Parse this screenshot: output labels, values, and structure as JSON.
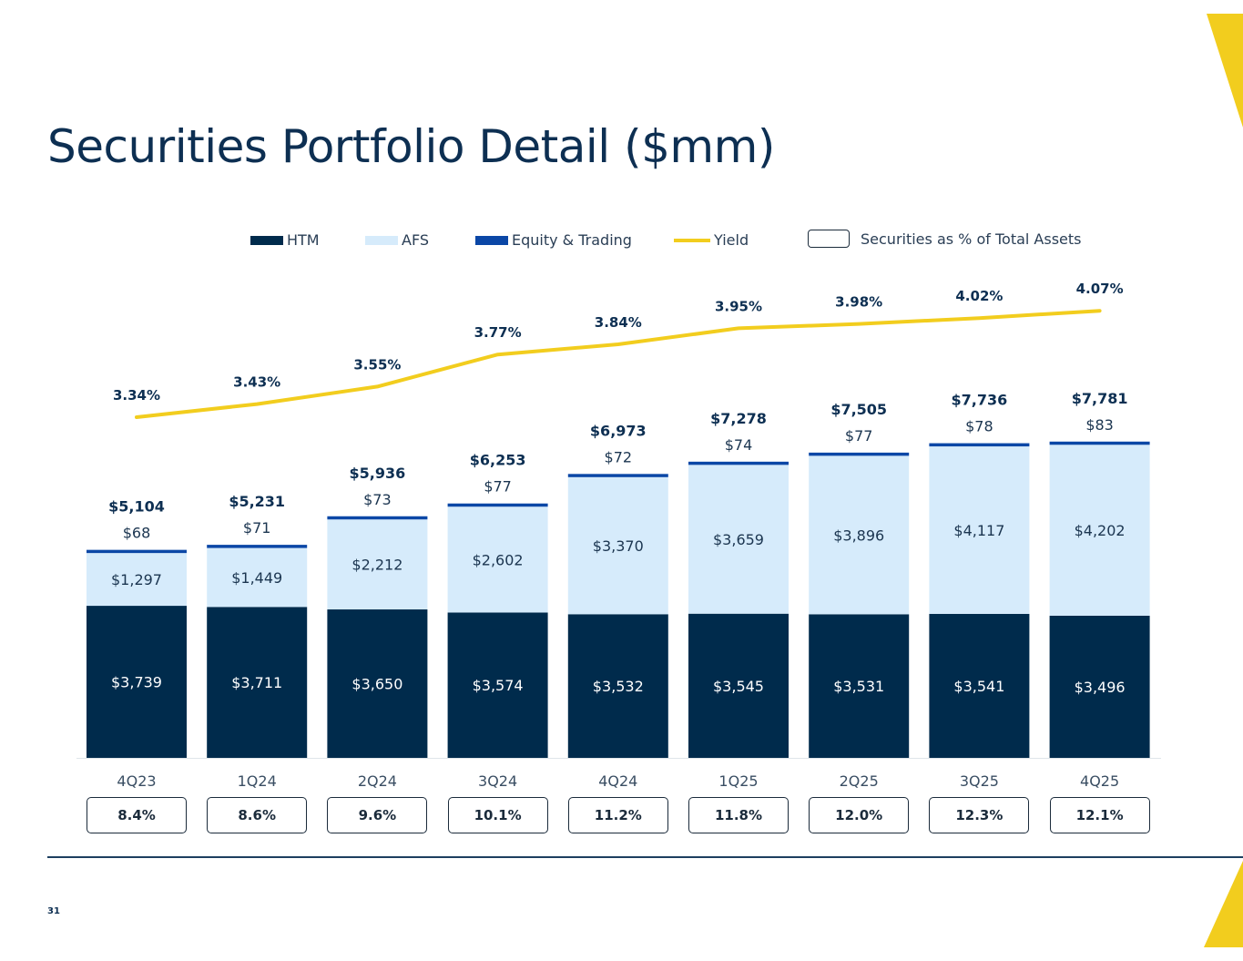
{
  "page": {
    "title": "Securities Portfolio Detail ($mm)",
    "page_number": "31"
  },
  "legend": {
    "htm": "HTM",
    "afs": "AFS",
    "equity": "Equity & Trading",
    "yield": "Yield",
    "pct_assets": "Securities as % of Total Assets"
  },
  "colors": {
    "htm": "#002b4c",
    "afs": "#d6ebfb",
    "equity": "#0b47a6",
    "yield": "#f2cd1e",
    "accent": "#f2cd1e"
  },
  "chart_data": {
    "type": "bar",
    "stacked": true,
    "categories": [
      "4Q23",
      "1Q24",
      "2Q24",
      "3Q24",
      "4Q24",
      "1Q25",
      "2Q25",
      "3Q25",
      "4Q25"
    ],
    "series": [
      {
        "name": "HTM",
        "values": [
          3739,
          3711,
          3650,
          3574,
          3532,
          3545,
          3531,
          3541,
          3496
        ],
        "labels": [
          "$3,739",
          "$3,711",
          "$3,650",
          "$3,574",
          "$3,532",
          "$3,545",
          "$3,531",
          "$3,541",
          "$3,496"
        ]
      },
      {
        "name": "AFS",
        "values": [
          1297,
          1449,
          2212,
          2602,
          3370,
          3659,
          3896,
          4117,
          4202
        ],
        "labels": [
          "$1,297",
          "$1,449",
          "$2,212",
          "$2,602",
          "$3,370",
          "$3,659",
          "$3,896",
          "$4,117",
          "$4,202"
        ]
      },
      {
        "name": "Equity & Trading",
        "values": [
          68,
          71,
          73,
          77,
          72,
          74,
          77,
          78,
          83
        ],
        "labels": [
          "$68",
          "$71",
          "$73",
          "$77",
          "$72",
          "$74",
          "$77",
          "$78",
          "$83"
        ]
      }
    ],
    "totals": [
      "$5,104",
      "$5,231",
      "$5,936",
      "$6,253",
      "$6,973",
      "$7,278",
      "$7,505",
      "$7,736",
      "$7,781"
    ],
    "yield": {
      "name": "Yield",
      "values": [
        3.34,
        3.43,
        3.55,
        3.77,
        3.84,
        3.95,
        3.98,
        4.02,
        4.07
      ],
      "labels": [
        "3.34%",
        "3.43%",
        "3.55%",
        "3.77%",
        "3.84%",
        "3.95%",
        "3.98%",
        "4.02%",
        "4.07%"
      ]
    },
    "securities_pct_total_assets": [
      "8.4%",
      "8.6%",
      "9.6%",
      "10.1%",
      "11.2%",
      "11.8%",
      "12.0%",
      "12.3%",
      "12.1%"
    ],
    "ylim": [
      0,
      7781
    ],
    "grid": false,
    "legend_position": "top"
  }
}
